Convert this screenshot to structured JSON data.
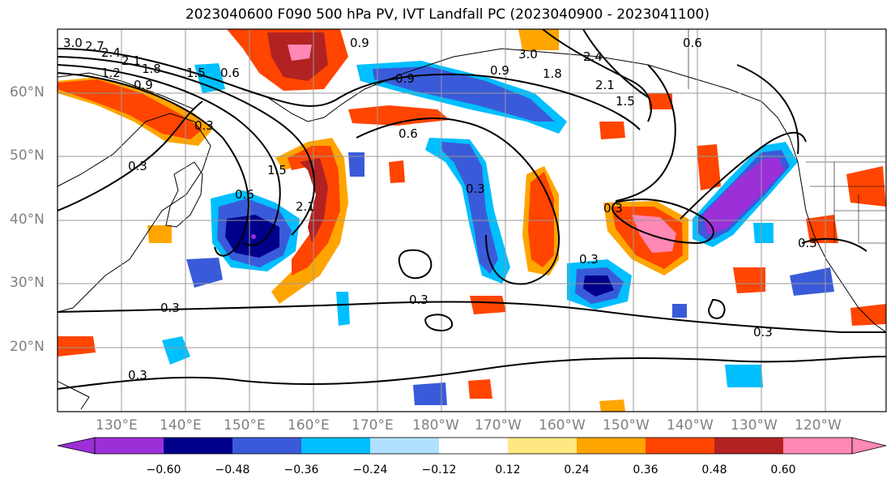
{
  "title": "2023040600 F090 500 hPa PV, IVT Landfall PC (2023040900 - 2023041100)",
  "lat_labels": [
    "60°N",
    "50°N",
    "40°N",
    "30°N",
    "20°N"
  ],
  "lon_labels": [
    "130°E",
    "140°E",
    "150°E",
    "160°E",
    "170°E",
    "180°W",
    "170°W",
    "160°W",
    "150°W",
    "140°W",
    "130°W",
    "120°W"
  ],
  "colorbar": {
    "colors": [
      "#9b30d9",
      "#00008b",
      "#3a5bd9",
      "#00bfff",
      "#b0e2ff",
      "#ffffff",
      "#ffe882",
      "#ffa500",
      "#ff4500",
      "#b22222",
      "#ff88b4"
    ],
    "tick_labels": [
      "−0.60",
      "−0.48",
      "−0.36",
      "−0.24",
      "−0.12",
      "0.12",
      "0.24",
      "0.36",
      "0.48",
      "0.60"
    ]
  },
  "contour_labels": [
    "3.0",
    "2.7",
    "2.4",
    "2.1",
    "1.8",
    "1.5",
    "1.2",
    "0.9",
    "0.6",
    "0.3",
    "0.9",
    "0.6",
    "0.3",
    "0.9",
    "1.5",
    "2.1",
    "0.3",
    "0.3",
    "0.6",
    "0.9",
    "1.5",
    "1.8",
    "2.4",
    "2.1",
    "3.0",
    "0.6",
    "0.3",
    "0.3",
    "0.3",
    "0.3",
    "0.3",
    "0.3"
  ]
}
